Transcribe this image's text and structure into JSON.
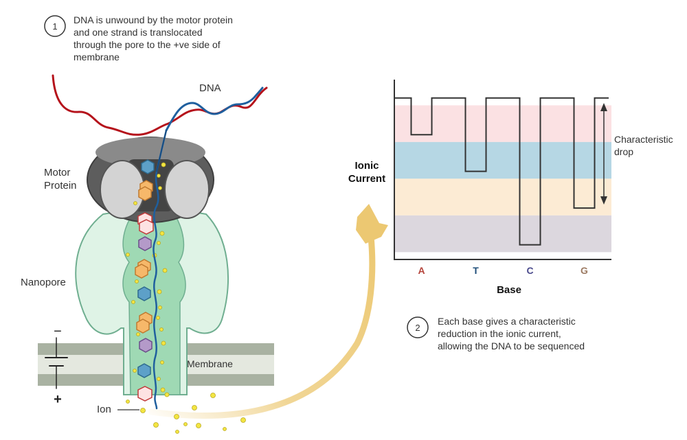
{
  "step1": {
    "number": "1",
    "lines": [
      "DNA is unwound by the motor protein",
      "and one strand is translocated",
      "through the pore to the +ve side of",
      "membrane"
    ]
  },
  "step2": {
    "number": "2",
    "lines": [
      "Each base gives a characteristic",
      "reduction in the ionic current,",
      "allowing the DNA to be sequenced"
    ]
  },
  "labels": {
    "dna": "DNA",
    "motor_protein": [
      "Motor",
      "Protein"
    ],
    "nanopore": "Nanopore",
    "membrane": "Membrane",
    "ion": "Ion",
    "minus": "−",
    "plus": "+"
  },
  "chart": {
    "ylabel": [
      "Ionic",
      "Current"
    ],
    "xlabel": "Base",
    "annotation": [
      "Characteristic",
      "drop"
    ]
  },
  "colors": {
    "dna_red": "#b5121b",
    "dna_blue": "#1f5f9e",
    "motor_dark": "#5d5d5d",
    "pore_green": "#cfeedd",
    "ion_yellow": "#f3e542",
    "arrow_gold": "#ecc872",
    "band_pink": "#fbe1e3",
    "band_blue": "#b6d7e4",
    "band_peach": "#fcebd4",
    "band_gray": "#dcd7de"
  },
  "chart_data": {
    "type": "line",
    "categories": [
      "A",
      "T",
      "C",
      "G"
    ],
    "category_colors": [
      "#b5453c",
      "#1f4e79",
      "#4a4a8c",
      "#9c7a62"
    ],
    "series": [
      {
        "values": [
          3.4,
          2.4,
          0.4,
          1.4
        ]
      }
    ],
    "baseline": 4.4,
    "ylim": [
      0,
      4.9
    ],
    "bands": [
      {
        "from": 3.2,
        "to": 4.2,
        "color": "#fbe1e3"
      },
      {
        "from": 2.2,
        "to": 3.2,
        "color": "#b6d7e4"
      },
      {
        "from": 1.2,
        "to": 2.2,
        "color": "#fcebd4"
      },
      {
        "from": 0.2,
        "to": 1.2,
        "color": "#dcd7de"
      }
    ],
    "xlabel": "Base",
    "ylabel": "Ionic Current"
  }
}
